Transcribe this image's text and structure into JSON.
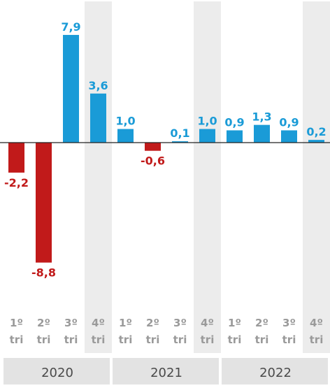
{
  "chart_data": {
    "type": "bar",
    "categories": [
      "1º tri",
      "2º tri",
      "3º tri",
      "4º tri",
      "1º tri",
      "2º tri",
      "3º tri",
      "4º tri",
      "1º tri",
      "2º tri",
      "3º tri",
      "4º tri"
    ],
    "quarter_lines": [
      [
        "1º",
        "tri"
      ],
      [
        "2º",
        "tri"
      ],
      [
        "3º",
        "tri"
      ],
      [
        "4º",
        "tri"
      ],
      [
        "1º",
        "tri"
      ],
      [
        "2º",
        "tri"
      ],
      [
        "3º",
        "tri"
      ],
      [
        "4º",
        "tri"
      ],
      [
        "1º",
        "tri"
      ],
      [
        "2º",
        "tri"
      ],
      [
        "3º",
        "tri"
      ],
      [
        "4º",
        "tri"
      ]
    ],
    "values": [
      -2.2,
      -8.8,
      7.9,
      3.6,
      1.0,
      -0.6,
      0.1,
      1.0,
      0.9,
      1.3,
      0.9,
      0.2
    ],
    "value_labels": [
      "-2,2",
      "-8,8",
      "7,9",
      "3,6",
      "1,0",
      "-0,6",
      "0,1",
      "1,0",
      "0,9",
      "1,3",
      "0,9",
      "0,2"
    ],
    "years": [
      "2020",
      "2021",
      "2022"
    ],
    "ylim": [
      -8.8,
      7.9
    ],
    "colors": {
      "positive": "#1a9bd7",
      "negative": "#c11a1a",
      "shade": "#ececec",
      "axis_text": "#9a9a9a",
      "year_bar": "#e3e3e3",
      "year_text": "#4a4a4a"
    }
  }
}
